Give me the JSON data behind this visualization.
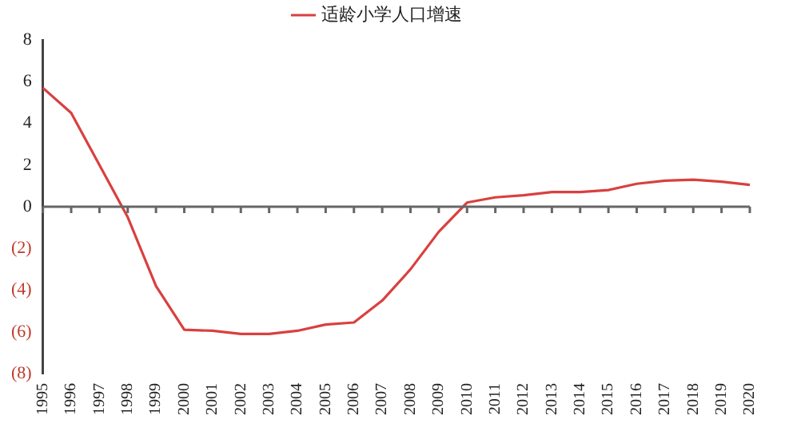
{
  "chart_data": {
    "type": "line",
    "categories": [
      "1995",
      "1996",
      "1997",
      "1998",
      "1999",
      "2000",
      "2001",
      "2002",
      "2003",
      "2004",
      "2005",
      "2006",
      "2007",
      "2008",
      "2009",
      "2010",
      "2011",
      "2012",
      "2013",
      "2014",
      "2015",
      "2016",
      "2017",
      "2018",
      "2019",
      "2020"
    ],
    "series": [
      {
        "name": "适龄小学人口增速",
        "color": "#d9403f",
        "values": [
          5.7,
          4.5,
          2.0,
          -0.5,
          -3.8,
          -5.9,
          -5.95,
          -6.1,
          -6.1,
          -5.95,
          -5.65,
          -5.55,
          -4.5,
          -3.0,
          -1.2,
          0.2,
          0.45,
          0.55,
          0.7,
          0.7,
          0.8,
          1.1,
          1.25,
          1.3,
          1.2,
          1.05
        ]
      }
    ],
    "ylim": [
      -8,
      8
    ],
    "yticks": [
      {
        "value": -8,
        "label": "(8)"
      },
      {
        "value": -6,
        "label": "(6)"
      },
      {
        "value": -4,
        "label": "(4)"
      },
      {
        "value": -2,
        "label": "(2)"
      },
      0,
      2,
      4,
      6,
      8
    ],
    "ref_lines": [
      {
        "axis": "y",
        "value": 0,
        "color": "#666666"
      }
    ],
    "legend": "top",
    "marker": "none",
    "line_style": "solid",
    "grid": false
  }
}
